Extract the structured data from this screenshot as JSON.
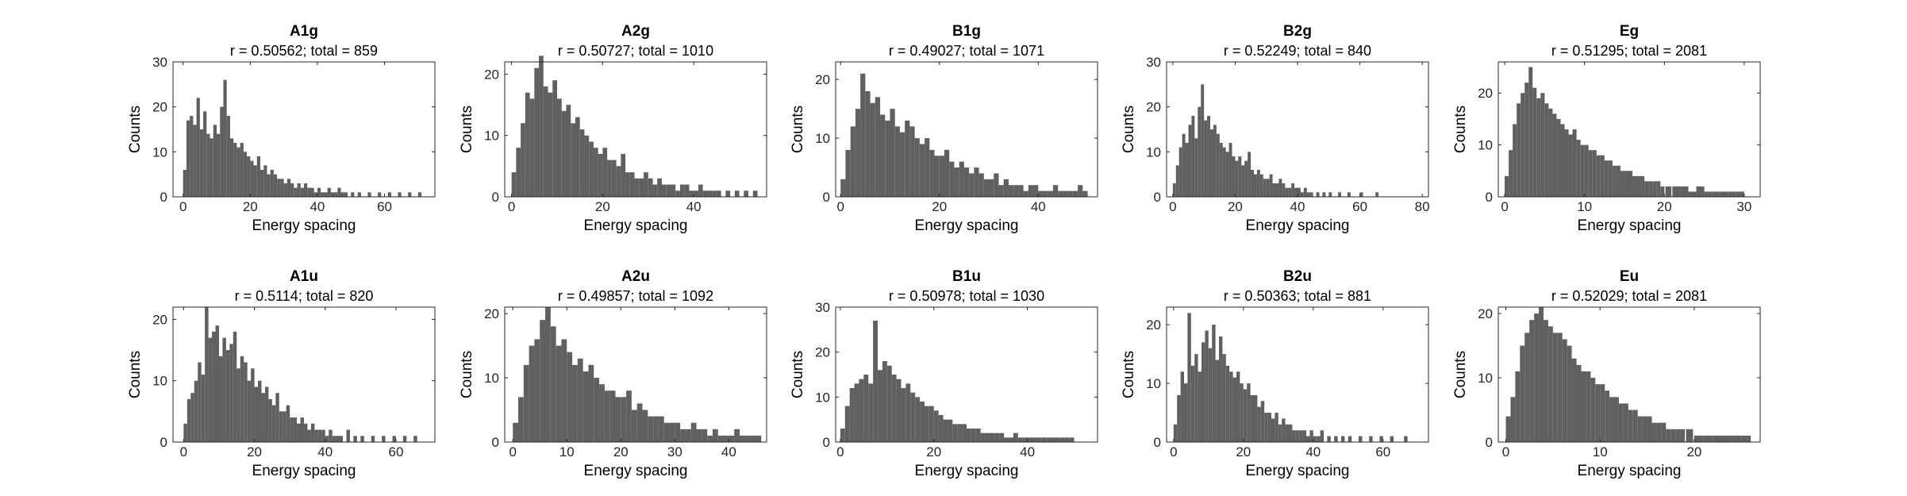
{
  "figure": {
    "background": "#ffffff",
    "bar_color": "#606060",
    "axis_color": "#262626"
  },
  "chart_data": [
    {
      "type": "bar",
      "title": "A1g",
      "subtitle": "r = 0.50562; total = 859",
      "xlabel": "Energy spacing",
      "ylabel": "Counts",
      "xlim": [
        -3,
        75
      ],
      "ylim": [
        0,
        30
      ],
      "xticks": [
        0,
        20,
        40,
        60
      ],
      "yticks": [
        0,
        10,
        20,
        30
      ],
      "x": [
        0.5,
        1.5,
        2.5,
        3.5,
        4.5,
        5.5,
        6.5,
        7.5,
        8.5,
        9.5,
        10.5,
        11.5,
        12.5,
        13.5,
        14.5,
        15.5,
        16.5,
        17.5,
        18.5,
        19.5,
        20.5,
        21.5,
        22.5,
        23.5,
        24.5,
        25.5,
        26.5,
        27.5,
        28.5,
        29.5,
        30.5,
        31.5,
        32.5,
        33.5,
        34.5,
        35.5,
        36.5,
        37.5,
        38.5,
        39.5,
        40.5,
        41.5,
        42.5,
        43.5,
        44.5,
        45.5,
        46.5,
        47.5,
        48.5,
        50.5,
        52.5,
        55.5,
        58.5,
        61.5,
        64.5,
        67.5,
        70.5
      ],
      "values": [
        6,
        17,
        18,
        16,
        22,
        15,
        19,
        14,
        13,
        16,
        14,
        20,
        26,
        18,
        13,
        12,
        11,
        12,
        10,
        9,
        8,
        7,
        9,
        6,
        7,
        5,
        6,
        5,
        4,
        4,
        3,
        4,
        3,
        2,
        3,
        2,
        3,
        2,
        2,
        1,
        2,
        1,
        1,
        2,
        1,
        1,
        2,
        1,
        1,
        1,
        1,
        1,
        1,
        1,
        1,
        1,
        1
      ]
    },
    {
      "type": "bar",
      "title": "A2g",
      "subtitle": "r = 0.50727; total = 1010",
      "xlabel": "Energy spacing",
      "ylabel": "Counts",
      "xlim": [
        -1.5,
        56
      ],
      "ylim": [
        0,
        22
      ],
      "xticks": [
        0,
        20,
        40
      ],
      "yticks": [
        0,
        10,
        20
      ],
      "x": [
        0.5,
        1.5,
        2.5,
        3.5,
        4.5,
        5.5,
        6.5,
        7.5,
        8.5,
        9.5,
        10.5,
        11.5,
        12.5,
        13.5,
        14.5,
        15.5,
        16.5,
        17.5,
        18.5,
        19.5,
        20.5,
        21.5,
        22.5,
        23.5,
        24.5,
        25.5,
        26.5,
        27.5,
        28.5,
        29.5,
        30.5,
        31.5,
        32.5,
        33.5,
        34.5,
        35.5,
        36.5,
        37.5,
        38.5,
        39.5,
        40.5,
        41.5,
        42.5,
        43.5,
        44.5,
        45.5,
        47.5,
        49.5,
        51.5,
        53.5
      ],
      "values": [
        4,
        8,
        12,
        17,
        16,
        21,
        23,
        18,
        17,
        19,
        16,
        14,
        15,
        12,
        13,
        11,
        10,
        9,
        8,
        7,
        8,
        6,
        6,
        5,
        7,
        4,
        4,
        3,
        3,
        4,
        3,
        2,
        3,
        2,
        2,
        2,
        1,
        2,
        2,
        1,
        1,
        2,
        1,
        1,
        1,
        1,
        1,
        1,
        1,
        1
      ]
    },
    {
      "type": "bar",
      "title": "B1g",
      "subtitle": "r = 0.49027; total = 1071",
      "xlabel": "Energy spacing",
      "ylabel": "Counts",
      "xlim": [
        -1,
        52
      ],
      "ylim": [
        0,
        23
      ],
      "xticks": [
        0,
        20,
        40
      ],
      "yticks": [
        0,
        10,
        20
      ],
      "x": [
        0.5,
        1.5,
        2.5,
        3.5,
        4.5,
        5.5,
        6.5,
        7.5,
        8.5,
        9.5,
        10.5,
        11.5,
        12.5,
        13.5,
        14.5,
        15.5,
        16.5,
        17.5,
        18.5,
        19.5,
        20.5,
        21.5,
        22.5,
        23.5,
        24.5,
        25.5,
        26.5,
        27.5,
        28.5,
        29.5,
        30.5,
        31.5,
        32.5,
        33.5,
        34.5,
        35.5,
        36.5,
        37.5,
        38.5,
        39.5,
        40.5,
        41.5,
        42.5,
        43.5,
        44.5,
        45.5,
        46.5,
        47.5,
        48.5,
        49.5
      ],
      "values": [
        3,
        8,
        12,
        15,
        21,
        18,
        16,
        17,
        14,
        13,
        15,
        12,
        11,
        13,
        12,
        10,
        9,
        10,
        8,
        7,
        7,
        8,
        6,
        5,
        6,
        5,
        4,
        5,
        4,
        3,
        3,
        4,
        2,
        3,
        2,
        2,
        2,
        1,
        2,
        2,
        1,
        1,
        1,
        2,
        1,
        1,
        1,
        1,
        2,
        1
      ]
    },
    {
      "type": "bar",
      "title": "B2g",
      "subtitle": "r = 0.52249; total = 840",
      "xlabel": "Energy spacing",
      "ylabel": "Counts",
      "xlim": [
        -2,
        82
      ],
      "ylim": [
        0,
        30
      ],
      "xticks": [
        0,
        20,
        40,
        60,
        80
      ],
      "yticks": [
        0,
        10,
        20,
        30
      ],
      "x": [
        0.5,
        1.5,
        2.5,
        3.5,
        4.5,
        5.5,
        6.5,
        7.5,
        8.5,
        9.5,
        10.5,
        11.5,
        12.5,
        13.5,
        14.5,
        15.5,
        16.5,
        17.5,
        18.5,
        19.5,
        20.5,
        21.5,
        22.5,
        23.5,
        24.5,
        25.5,
        26.5,
        27.5,
        28.5,
        29.5,
        30.5,
        31.5,
        32.5,
        33.5,
        34.5,
        35.5,
        36.5,
        37.5,
        38.5,
        39.5,
        40.5,
        41.5,
        42.5,
        43.5,
        44.5,
        46.5,
        48.5,
        50.5,
        53.5,
        56.5,
        60.5,
        65.5
      ],
      "values": [
        3,
        7,
        11,
        14,
        12,
        16,
        18,
        13,
        20,
        25,
        17,
        18,
        15,
        16,
        14,
        12,
        11,
        10,
        12,
        9,
        8,
        9,
        7,
        8,
        10,
        6,
        5,
        6,
        5,
        4,
        4,
        5,
        3,
        3,
        4,
        3,
        2,
        2,
        3,
        2,
        2,
        1,
        2,
        1,
        1,
        1,
        1,
        1,
        1,
        1,
        1,
        1
      ]
    },
    {
      "type": "bar",
      "title": "Eg",
      "subtitle": "r = 0.51295; total = 2081",
      "xlabel": "Energy spacing",
      "ylabel": "Counts",
      "xlim": [
        -0.8,
        32
      ],
      "ylim": [
        0,
        26
      ],
      "xticks": [
        0,
        10,
        20,
        30
      ],
      "yticks": [
        0,
        10,
        20
      ],
      "x": [
        0.25,
        0.75,
        1.25,
        1.75,
        2.25,
        2.75,
        3.25,
        3.75,
        4.25,
        4.75,
        5.25,
        5.75,
        6.25,
        6.75,
        7.25,
        7.75,
        8.25,
        8.75,
        9.25,
        9.75,
        10.25,
        10.75,
        11.25,
        11.75,
        12.25,
        12.75,
        13.25,
        13.75,
        14.25,
        14.75,
        15.25,
        15.75,
        16.25,
        16.75,
        17.25,
        17.75,
        18.25,
        18.75,
        19.25,
        19.75,
        20.5,
        21.5,
        22.5,
        23.5,
        24.5,
        25.5,
        26.5,
        27.5,
        28.5,
        29.5
      ],
      "values": [
        4,
        9,
        14,
        18,
        20,
        22,
        25,
        21,
        19,
        20,
        18,
        17,
        16,
        15,
        14,
        13,
        12,
        13,
        11,
        10,
        10,
        9,
        9,
        8,
        8,
        7,
        7,
        6,
        6,
        5,
        5,
        5,
        4,
        4,
        4,
        3,
        3,
        3,
        3,
        2,
        2,
        2,
        2,
        1,
        2,
        1,
        1,
        1,
        1,
        1
      ]
    },
    {
      "type": "bar",
      "title": "A1u",
      "subtitle": "r = 0.5114; total = 820",
      "xlabel": "Energy spacing",
      "ylabel": "Counts",
      "xlim": [
        -3,
        71
      ],
      "ylim": [
        0,
        22
      ],
      "xticks": [
        0,
        20,
        40,
        60
      ],
      "yticks": [
        0,
        10,
        20
      ],
      "x": [
        0.5,
        1.5,
        2.5,
        3.5,
        4.5,
        5.5,
        6.5,
        7.5,
        8.5,
        9.5,
        10.5,
        11.5,
        12.5,
        13.5,
        14.5,
        15.5,
        16.5,
        17.5,
        18.5,
        19.5,
        20.5,
        21.5,
        22.5,
        23.5,
        24.5,
        25.5,
        26.5,
        27.5,
        28.5,
        29.5,
        30.5,
        31.5,
        32.5,
        33.5,
        34.5,
        35.5,
        36.5,
        37.5,
        38.5,
        39.5,
        40.5,
        41.5,
        42.5,
        43.5,
        44.5,
        46.5,
        48.5,
        50.5,
        53.5,
        56.5,
        59.5,
        62.5,
        65.5
      ],
      "values": [
        3,
        7,
        8,
        10,
        13,
        11,
        22,
        17,
        18,
        19,
        14,
        17,
        15,
        16,
        18,
        12,
        14,
        13,
        10,
        12,
        9,
        10,
        8,
        9,
        7,
        6,
        8,
        5,
        5,
        6,
        4,
        4,
        3,
        4,
        3,
        2,
        3,
        2,
        2,
        2,
        1,
        2,
        1,
        1,
        1,
        2,
        1,
        1,
        1,
        1,
        1,
        1,
        1
      ]
    },
    {
      "type": "bar",
      "title": "A2u",
      "subtitle": "r = 0.49857; total = 1092",
      "xlabel": "Energy spacing",
      "ylabel": "Counts",
      "xlim": [
        -1.5,
        47
      ],
      "ylim": [
        0,
        21
      ],
      "xticks": [
        0,
        10,
        20,
        30,
        40
      ],
      "yticks": [
        0,
        10,
        20
      ],
      "x": [
        0.5,
        1.5,
        2.5,
        3.5,
        4.5,
        5.5,
        6.5,
        7.5,
        8.5,
        9.5,
        10.5,
        11.5,
        12.5,
        13.5,
        14.5,
        15.5,
        16.5,
        17.5,
        18.5,
        19.5,
        20.5,
        21.5,
        22.5,
        23.5,
        24.5,
        25.5,
        26.5,
        27.5,
        28.5,
        29.5,
        30.5,
        31.5,
        32.5,
        33.5,
        34.5,
        35.5,
        36.5,
        37.5,
        38.5,
        39.5,
        40.5,
        41.5,
        42.5,
        43.5,
        44.5,
        45.5
      ],
      "values": [
        3,
        7,
        12,
        15,
        16,
        19,
        21,
        18,
        15,
        16,
        14,
        12,
        13,
        11,
        12,
        10,
        9,
        8,
        8,
        7,
        7,
        8,
        5,
        6,
        5,
        4,
        4,
        4,
        3,
        3,
        3,
        2,
        2,
        3,
        2,
        2,
        1,
        2,
        1,
        1,
        1,
        2,
        1,
        1,
        1,
        1
      ]
    },
    {
      "type": "bar",
      "title": "B1u",
      "subtitle": "r = 0.50978; total = 1030",
      "xlabel": "Energy spacing",
      "ylabel": "Counts",
      "xlim": [
        -1,
        55
      ],
      "ylim": [
        0,
        30
      ],
      "xticks": [
        0,
        20,
        40
      ],
      "yticks": [
        0,
        10,
        20,
        30
      ],
      "x": [
        0.5,
        1.5,
        2.5,
        3.5,
        4.5,
        5.5,
        6.5,
        7.5,
        8.5,
        9.5,
        10.5,
        11.5,
        12.5,
        13.5,
        14.5,
        15.5,
        16.5,
        17.5,
        18.5,
        19.5,
        20.5,
        21.5,
        22.5,
        23.5,
        24.5,
        25.5,
        26.5,
        27.5,
        28.5,
        29.5,
        30.5,
        31.5,
        32.5,
        33.5,
        34.5,
        35.5,
        36.5,
        37.5,
        38.5,
        39.5,
        40.5,
        41.5,
        42.5,
        43.5,
        44.5,
        45.5,
        46.5,
        47.5,
        48.5,
        49.5
      ],
      "values": [
        3,
        8,
        12,
        13,
        14,
        15,
        13,
        27,
        16,
        18,
        17,
        15,
        14,
        12,
        13,
        11,
        10,
        9,
        8,
        8,
        7,
        6,
        5,
        5,
        4,
        4,
        4,
        3,
        3,
        3,
        2,
        2,
        2,
        2,
        2,
        1,
        1,
        2,
        1,
        1,
        1,
        1,
        1,
        1,
        1,
        1,
        1,
        1,
        1,
        1
      ]
    },
    {
      "type": "bar",
      "title": "B2u",
      "subtitle": "r = 0.50363; total = 881",
      "xlabel": "Energy spacing",
      "ylabel": "Counts",
      "xlim": [
        -2,
        73
      ],
      "ylim": [
        0,
        23
      ],
      "xticks": [
        0,
        20,
        40,
        60
      ],
      "yticks": [
        0,
        10,
        20
      ],
      "x": [
        0.5,
        1.5,
        2.5,
        3.5,
        4.5,
        5.5,
        6.5,
        7.5,
        8.5,
        9.5,
        10.5,
        11.5,
        12.5,
        13.5,
        14.5,
        15.5,
        16.5,
        17.5,
        18.5,
        19.5,
        20.5,
        21.5,
        22.5,
        23.5,
        24.5,
        25.5,
        26.5,
        27.5,
        28.5,
        29.5,
        30.5,
        31.5,
        32.5,
        33.5,
        34.5,
        35.5,
        36.5,
        37.5,
        38.5,
        39.5,
        40.5,
        41.5,
        42.5,
        44.5,
        46.5,
        48.5,
        50.5,
        53.5,
        56.5,
        59.5,
        62.5,
        66.5
      ],
      "values": [
        3,
        8,
        12,
        10,
        22,
        13,
        15,
        12,
        17,
        19,
        16,
        20,
        14,
        18,
        15,
        13,
        12,
        11,
        12,
        10,
        9,
        10,
        8,
        8,
        6,
        7,
        5,
        5,
        4,
        5,
        3,
        4,
        3,
        3,
        2,
        2,
        2,
        2,
        1,
        2,
        1,
        1,
        2,
        1,
        1,
        1,
        1,
        1,
        1,
        1,
        1,
        1
      ]
    },
    {
      "type": "bar",
      "title": "Eu",
      "subtitle": "r = 0.52029; total = 2081",
      "xlabel": "Energy spacing",
      "ylabel": "Counts",
      "xlim": [
        -0.8,
        27
      ],
      "ylim": [
        0,
        21
      ],
      "xticks": [
        0,
        10,
        20
      ],
      "yticks": [
        0,
        10,
        20
      ],
      "x": [
        0.25,
        0.75,
        1.25,
        1.75,
        2.25,
        2.75,
        3.25,
        3.75,
        4.25,
        4.75,
        5.25,
        5.75,
        6.25,
        6.75,
        7.25,
        7.75,
        8.25,
        8.75,
        9.25,
        9.75,
        10.25,
        10.75,
        11.25,
        11.75,
        12.25,
        12.75,
        13.25,
        13.75,
        14.25,
        14.75,
        15.25,
        15.75,
        16.25,
        16.75,
        17.25,
        17.75,
        18.25,
        18.75,
        19.5,
        20.5,
        21.5,
        22.5,
        23.5,
        24.5,
        25.5
      ],
      "values": [
        4,
        7,
        11,
        15,
        17,
        19,
        20,
        21,
        19,
        18,
        17,
        17,
        16,
        15,
        13,
        12,
        11,
        11,
        10,
        9,
        9,
        8,
        7,
        7,
        6,
        6,
        5,
        5,
        4,
        4,
        4,
        3,
        3,
        3,
        2,
        2,
        2,
        2,
        2,
        1,
        1,
        1,
        1,
        1,
        1
      ]
    }
  ]
}
